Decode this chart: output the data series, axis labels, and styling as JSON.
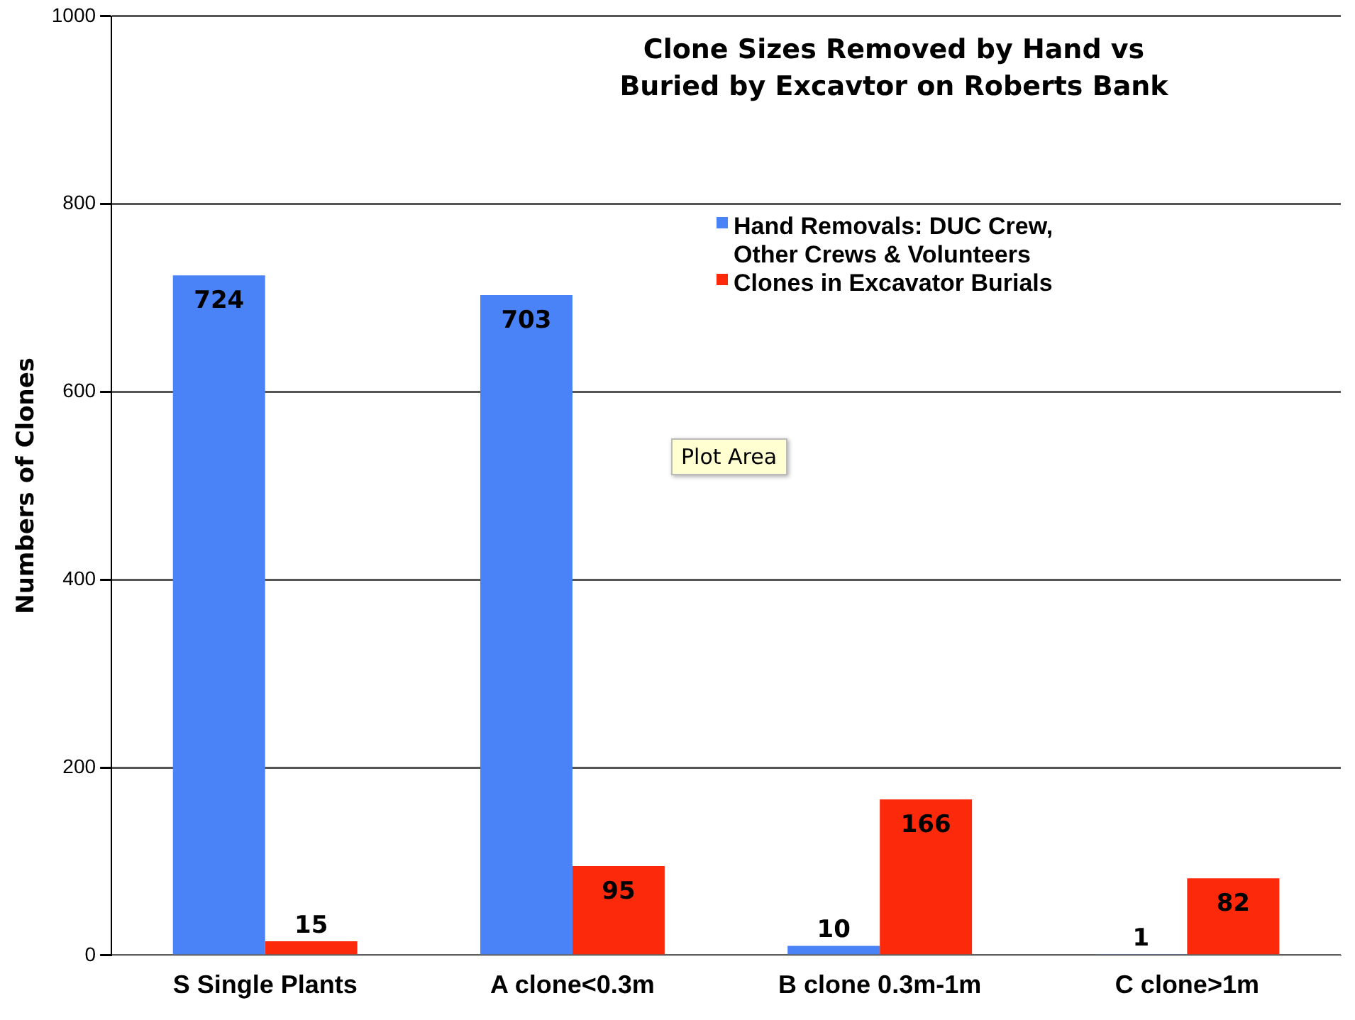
{
  "chart_data": {
    "type": "bar",
    "title": "Clone Sizes Removed by Hand vs Buried by Excavtor on Roberts Bank",
    "ylabel": "Numbers of Clones",
    "categories": [
      "S Single Plants",
      "A clone<0.3m",
      "B clone 0.3m-1m",
      "C clone>1m"
    ],
    "series": [
      {
        "name": "Hand Removals: DUC Crew, Other Crews & Volunteers",
        "color": "#4a82f8",
        "values": [
          724,
          703,
          10,
          1
        ]
      },
      {
        "name": "Clones in Excavator Burials",
        "color": "#fc2a0a",
        "values": [
          15,
          95,
          166,
          82
        ]
      }
    ],
    "ylim": [
      0,
      1000
    ],
    "yticks": [
      0,
      200,
      400,
      600,
      800,
      1000
    ],
    "grid": "y",
    "legend": "top right",
    "data_labels": true,
    "annotations": [
      "Plot Area"
    ]
  }
}
